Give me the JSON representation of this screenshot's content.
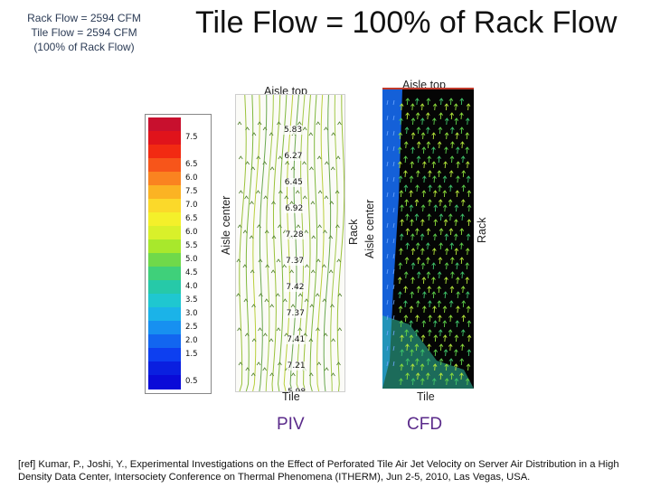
{
  "caption": {
    "line1": "Rack Flow = 2594 CFM",
    "line2": "Tile Flow = 2594 CFM",
    "line3": "(100% of Rack Flow)"
  },
  "title": "Tile Flow = 100% of Rack Flow",
  "piv": {
    "top_label": "Aisle top",
    "left_label": "Aisle center",
    "right_label": "Rack",
    "bottom_label": "Tile",
    "method": "PIV",
    "values": [
      "5.83",
      "6.27",
      "6.45",
      "6.92",
      "7.28",
      "7.37",
      "7.42",
      "7.37",
      "7.41",
      "7.21",
      "5.98"
    ]
  },
  "cfd": {
    "top_label": "Aisle top",
    "left_label": "Aisle center",
    "right_label": "Rack",
    "bottom_label": "Tile",
    "method": "CFD"
  },
  "colorbar": {
    "ticks": [
      "",
      "7.5",
      "",
      "6.5",
      "6.0",
      "7.5",
      "7.0",
      "6.5",
      "6.0",
      "5.5",
      "5.0",
      "4.5",
      "4.0",
      "3.5",
      "3.0",
      "2.5",
      "2.0",
      "1.5",
      "",
      "0.5"
    ],
    "colors": [
      "#c8102e",
      "#e0131b",
      "#f22a12",
      "#f7551a",
      "#fa8320",
      "#fbb323",
      "#fbd92a",
      "#f4f02a",
      "#d9f02a",
      "#a8e82c",
      "#6fd94a",
      "#3fd07a",
      "#26c9a8",
      "#1fc7d0",
      "#1bb3e8",
      "#1790f0",
      "#1266f0",
      "#0d3ff0",
      "#0a1fe0",
      "#0a0ad8"
    ]
  },
  "reference": "[ref] Kumar, P., Joshi, Y., Experimental Investigations on the Effect of Perforated Tile Air Jet Velocity on Server Air Distribution in a High Density Data Center, Intersociety Conference on Thermal Phenomena (ITHERM), Jun 2-5, 2010, Las Vegas, USA."
}
